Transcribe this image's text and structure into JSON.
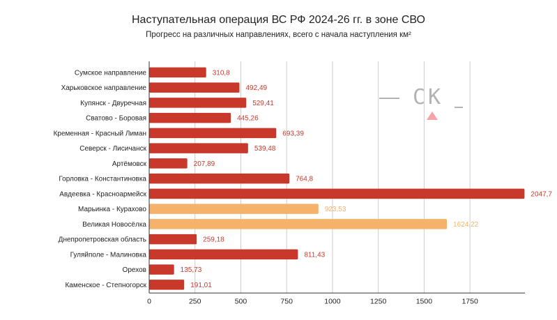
{
  "chart_data": {
    "type": "bar",
    "orientation": "horizontal",
    "title": "Наступательная операция ВС РФ 2024-26 гг. в зоне СВО",
    "subtitle": "Прогресс на различных направлениях, всего с начала наступления км²",
    "categories": [
      "Сумское направление",
      "Харьковское направление",
      "Купянск - Двуречная",
      "Сватово - Боровая",
      "Кременная - Красный Лиман",
      "Северск - Лисичанск",
      "Артёмовск",
      "Горловка - Константиновка",
      "Авдеевка - Красноармейск",
      "Марьинка - Курахово",
      "Великая Новосёлка",
      "Днепропетровская область",
      "Гуляйполе - Малиновка",
      "Орехов",
      "Каменское - Степногорск"
    ],
    "values": [
      310.8,
      492.49,
      529.41,
      445.26,
      693.39,
      539.48,
      207.89,
      764.8,
      2047.7,
      923.53,
      1624.22,
      259.18,
      811.43,
      135.73,
      191.01
    ],
    "value_labels": [
      "310,8",
      "492,49",
      "529,41",
      "445,26",
      "693,39",
      "539,48",
      "207,89",
      "764,8",
      "2047,7",
      "923,53",
      "1624,22",
      "259,18",
      "811,43",
      "135,73",
      "191,01"
    ],
    "highlighted": [
      false,
      false,
      false,
      false,
      false,
      false,
      false,
      false,
      false,
      true,
      true,
      false,
      false,
      false,
      false
    ],
    "xticks": [
      0,
      250,
      500,
      750,
      1000,
      1250,
      1500,
      1750
    ],
    "xlim": [
      0,
      2050
    ],
    "grid": true,
    "colors": {
      "bar": "#c8392b",
      "bar_highlight": "#f5b26b",
      "label": "#c8392b",
      "label_highlight": "#f5b26b",
      "grid": "#cccccc",
      "axis": "#333333"
    }
  },
  "watermark": {
    "text": "СК",
    "color": "#b3b3b3",
    "accent": "#f4a3a8"
  }
}
